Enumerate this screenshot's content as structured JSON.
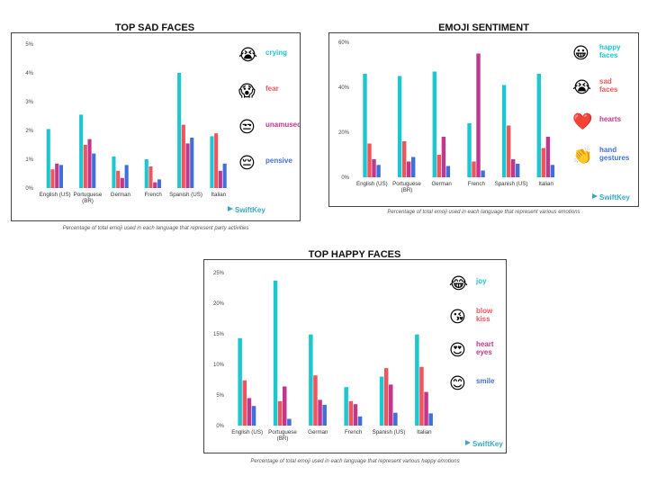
{
  "charts": [
    {
      "key": "sad",
      "title": "TOP SAD FACES",
      "caption": "Percentage of total emoji used in each language that represent party activities",
      "brand": "SwiftKey",
      "type": "bar",
      "categories": [
        [
          "English (US)"
        ],
        [
          "Portuguese",
          "(BR)"
        ],
        [
          "German"
        ],
        [
          "French"
        ],
        [
          "Spanish (US)"
        ],
        [
          "Italian"
        ]
      ],
      "yticks": [
        "0%",
        "1%",
        "2%",
        "3%",
        "4%",
        "5%"
      ],
      "ylim": [
        0,
        5
      ],
      "series": [
        {
          "name": "crying",
          "color": "#1cc7d0",
          "emoji": "😭",
          "values": [
            2.05,
            2.55,
            1.1,
            1.0,
            4.0,
            1.8
          ]
        },
        {
          "name": "fear",
          "color": "#f2545b",
          "emoji": "😱",
          "values": [
            0.65,
            1.5,
            0.6,
            0.75,
            2.2,
            1.9
          ]
        },
        {
          "name": "unamused",
          "color": "#c2378e",
          "emoji": "😒",
          "values": [
            0.85,
            1.7,
            0.35,
            0.2,
            1.55,
            0.6
          ]
        },
        {
          "name": "pensive",
          "color": "#3f6fd8",
          "emoji": "😔",
          "values": [
            0.8,
            1.2,
            0.8,
            0.3,
            1.75,
            0.85
          ]
        }
      ]
    },
    {
      "key": "sentiment",
      "title": "EMOJI SENTIMENT",
      "caption": "Percentage of total emoji used in each language that represent various emotions",
      "brand": "SwiftKey",
      "type": "bar",
      "categories": [
        [
          "English (US)"
        ],
        [
          "Portuguese",
          "(BR)"
        ],
        [
          "German"
        ],
        [
          "French"
        ],
        [
          "Spanish (US)"
        ],
        [
          "Italian"
        ]
      ],
      "yticks": [
        "0%",
        "20%",
        "40%",
        "60%"
      ],
      "ylim": [
        0,
        60
      ],
      "series": [
        {
          "name": "happy faces",
          "label_lines": [
            "happy",
            "faces"
          ],
          "color": "#1cc7d0",
          "emoji": "😀",
          "values": [
            46,
            45,
            47,
            24,
            41,
            46
          ]
        },
        {
          "name": "sad faces",
          "label_lines": [
            "sad",
            "faces"
          ],
          "color": "#f2545b",
          "emoji": "😭",
          "values": [
            15,
            16,
            10,
            7,
            23,
            13
          ]
        },
        {
          "name": "hearts",
          "label_lines": [
            "hearts"
          ],
          "color": "#c2378e",
          "emoji": "❤️",
          "values": [
            8,
            7,
            18,
            55,
            8,
            18
          ]
        },
        {
          "name": "hand gestures",
          "label_lines": [
            "hand",
            "gestures"
          ],
          "color": "#3f6fd8",
          "emoji": "👏",
          "values": [
            5.5,
            9,
            5,
            3,
            6,
            5.5
          ]
        }
      ]
    },
    {
      "key": "happy",
      "title": "TOP HAPPY FACES",
      "caption": "Percentage of total emoji used in each language that represent various happy emotions",
      "brand": "SwiftKey",
      "type": "bar",
      "categories": [
        [
          "English (US)"
        ],
        [
          "Portuguese",
          "(BR)"
        ],
        [
          "German"
        ],
        [
          "French"
        ],
        [
          "Spanish (US)"
        ],
        [
          "Italian"
        ]
      ],
      "yticks": [
        "0%",
        "5%",
        "10%",
        "15%",
        "20%",
        "25%"
      ],
      "ylim": [
        0,
        25
      ],
      "series": [
        {
          "name": "joy",
          "label_lines": [
            "joy"
          ],
          "color": "#1cc7d0",
          "emoji": "😂",
          "values": [
            14.3,
            23.7,
            14.9,
            6.3,
            8.0,
            14.9
          ]
        },
        {
          "name": "blow kiss",
          "label_lines": [
            "blow",
            "kiss"
          ],
          "color": "#f2545b",
          "emoji": "😘",
          "values": [
            7.4,
            4.0,
            8.2,
            4.0,
            9.4,
            9.6
          ]
        },
        {
          "name": "heart eyes",
          "label_lines": [
            "heart",
            "eyes"
          ],
          "color": "#c2378e",
          "emoji": "😍",
          "values": [
            4.5,
            6.4,
            4.2,
            3.5,
            6.7,
            5.5
          ]
        },
        {
          "name": "smile",
          "label_lines": [
            "smile"
          ],
          "color": "#3f6fd8",
          "emoji": "😊",
          "values": [
            3.2,
            1.1,
            3.4,
            1.5,
            2.1,
            2.0
          ]
        }
      ]
    }
  ]
}
